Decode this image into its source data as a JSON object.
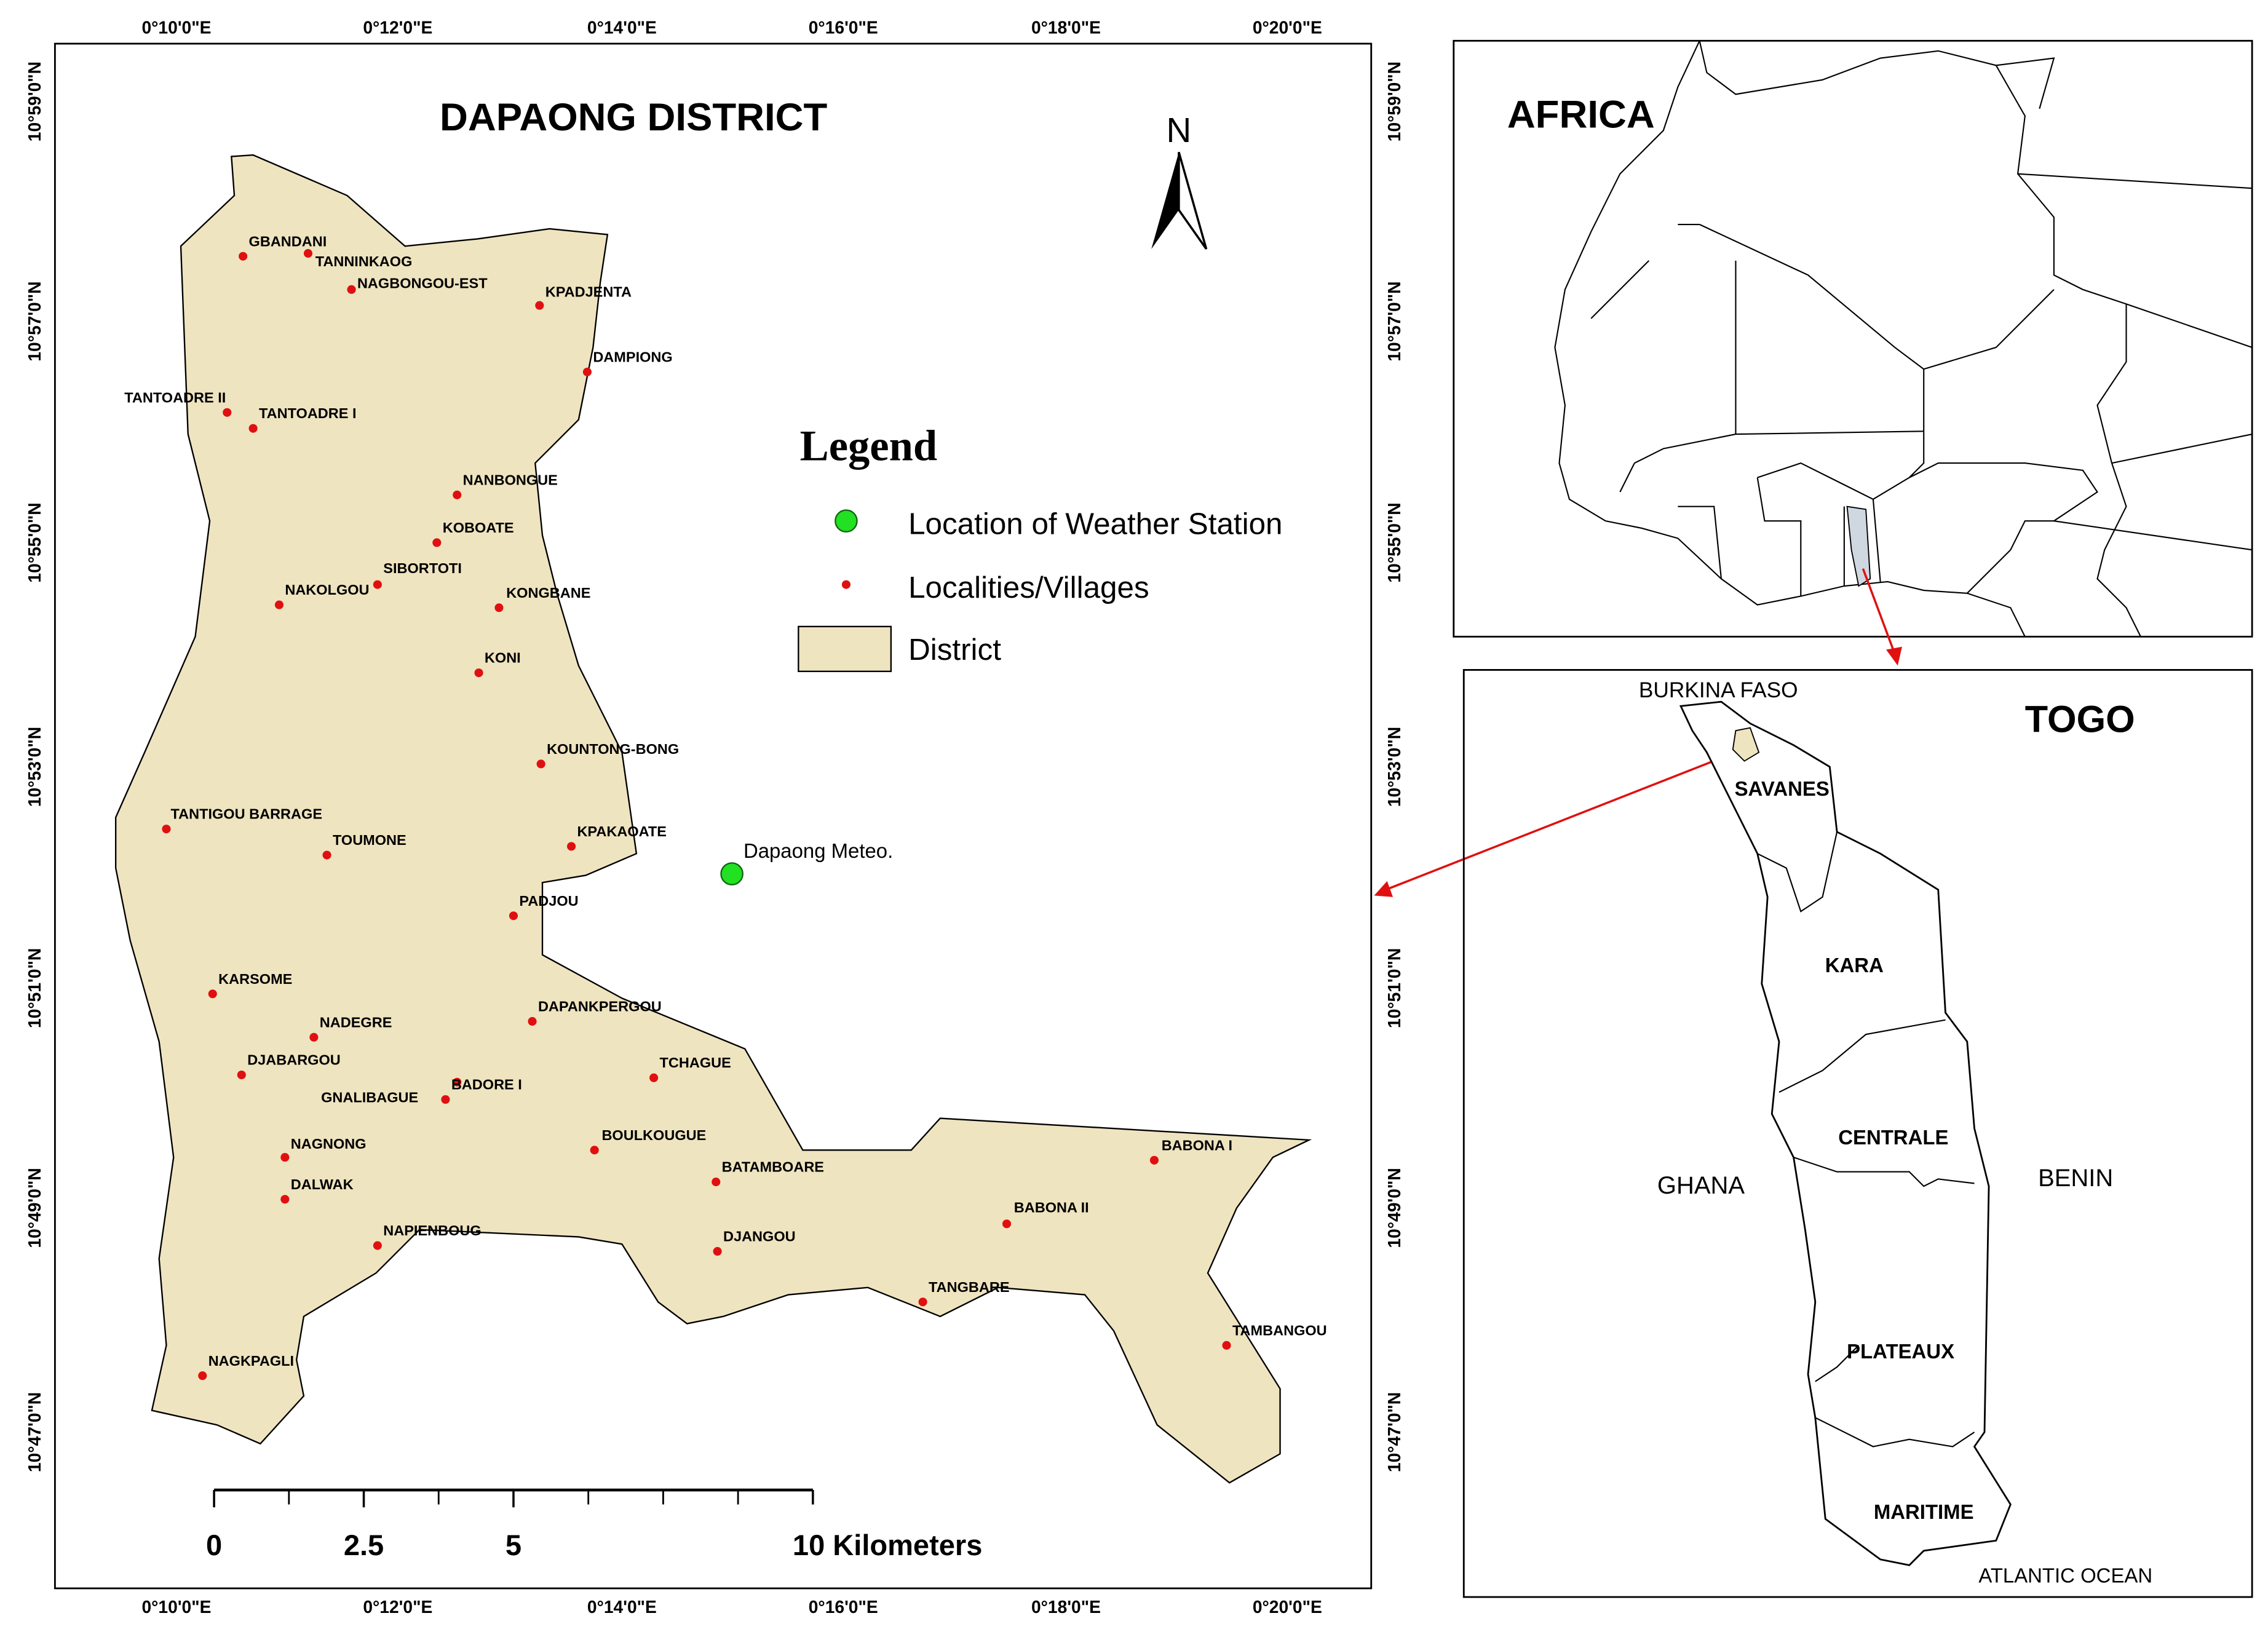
{
  "map": {
    "title": "DAPAONG DISTRICT",
    "north": "N",
    "legend": {
      "title": "Legend",
      "items": [
        "Location of Weather Station",
        "Localities/Villages",
        "District"
      ]
    },
    "longitude_labels": [
      "0°10'0\"E",
      "0°12'0\"E",
      "0°14'0\"E",
      "0°16'0\"E",
      "0°18'0\"E",
      "0°20'0\"E"
    ],
    "latitude_labels": [
      "10°59'0\"N",
      "10°57'0\"N",
      "10°55'0\"N",
      "10°53'0\"N",
      "10°51'0\"N",
      "10°49'0\"N",
      "10°47'0\"N"
    ],
    "villages": [
      "GBANDANI",
      "TANNINKAOG",
      "NAGBONGOU-EST",
      "KPADJENTA",
      "DAMPIONG",
      "TANTOADRE II",
      "TANTOADRE I",
      "NANBONGUE",
      "KOBOATE",
      "SIBORTOTI",
      "KONGBANE",
      "NAKOLGOU",
      "KONI",
      "KOUNTONG-BONG",
      "TANTIGOU BARRAGE",
      "TOUMONE",
      "KPAKAOATE",
      "PADJOU",
      "KARSOME",
      "DAPANKPERGOU",
      "NADEGRE",
      "DJABARGOU",
      "TCHAGUE",
      "BADORE I",
      "GNALIBAGUE",
      "NAGNONG",
      "BOULKOUGUE",
      "BATAMBOARE",
      "BABONA I",
      "DALWAK",
      "NAPIENBOUG",
      "DJANGOU",
      "BABONA II",
      "TANGBARE",
      "TAMBANGOU",
      "NAGKPAGLI"
    ],
    "weather_station": "Dapaong Meteo.",
    "scale": {
      "ticks": [
        0,
        2.5,
        5
      ],
      "end_label": "10 Kilometers"
    }
  },
  "inset_africa": {
    "title": "AFRICA"
  },
  "inset_togo": {
    "title": "TOGO",
    "labels": [
      "BURKINA FASO",
      "SAVANES",
      "KARA",
      "CENTRALE",
      "GHANA",
      "BENIN",
      "PLATEAUX",
      "MARITIME",
      "ATLANTIC OCEAN"
    ]
  }
}
